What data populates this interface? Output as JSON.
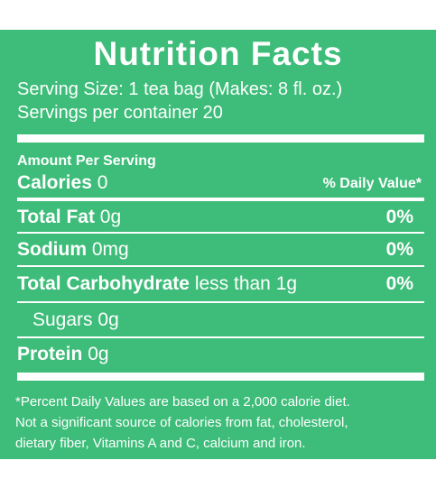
{
  "label": {
    "title": "Nutrition Facts",
    "serving_size": "Serving Size: 1 tea bag (Makes: 8 fl. oz.)",
    "servings_per_container": "Servings per container 20",
    "amount_per_serving": "Amount Per Serving",
    "calories_label": "Calories",
    "calories_value": "0",
    "daily_value_header": "% Daily Value*",
    "nutrients": [
      {
        "name": "Total Fat",
        "amount": "0g",
        "dv": "0%"
      },
      {
        "name": "Sodium",
        "amount": "0mg",
        "dv": "0%"
      },
      {
        "name": "Total Carbohydrate",
        "amount": "less than 1g",
        "dv": "0%"
      },
      {
        "name": "Sugars",
        "amount": "0g",
        "dv": ""
      },
      {
        "name": "Protein",
        "amount": "0g",
        "dv": ""
      }
    ],
    "footnote": [
      "*Percent Daily Values are based on a 2,000 calorie diet.",
      "Not a significant source of calories from fat, cholesterol,",
      "dietary fiber, Vitamins A and C, calcium and iron."
    ],
    "colors": {
      "background": "#3dbd79",
      "text": "#ffffff"
    }
  }
}
